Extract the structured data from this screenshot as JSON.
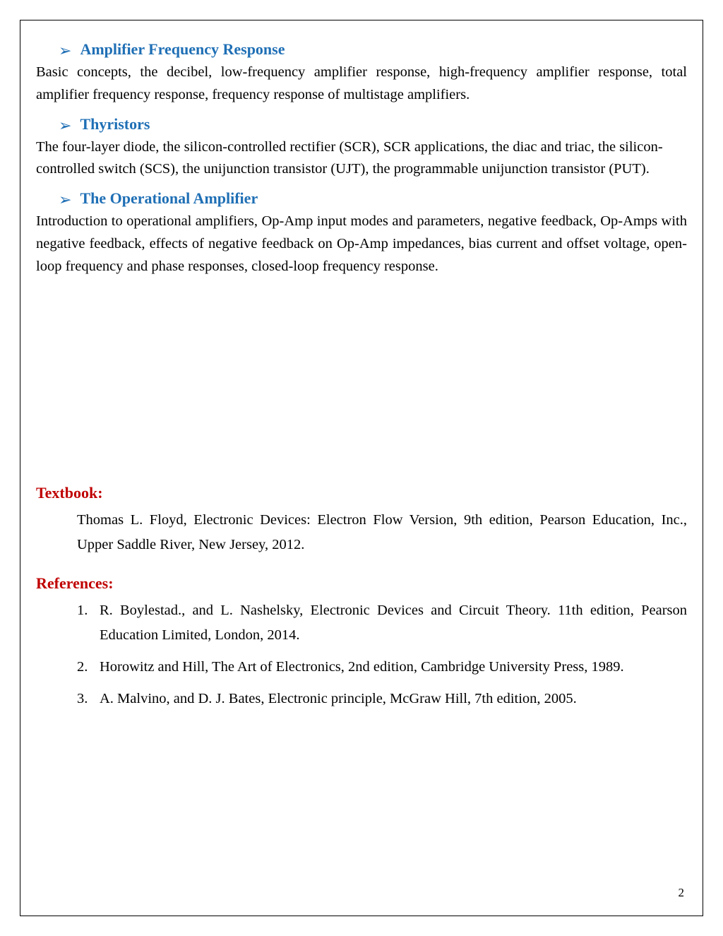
{
  "sections": [
    {
      "heading": "Amplifier Frequency Response",
      "body": "Basic concepts, the decibel, low-frequency amplifier response, high-frequency amplifier response, total amplifier frequency response, frequency response of multistage amplifiers.",
      "justify": true
    },
    {
      "heading": "Thyristors",
      "body": "The four-layer diode, the silicon-controlled rectifier (SCR), SCR applications, the diac and triac, the silicon-controlled switch (SCS), the unijunction transistor (UJT), the programmable unijunction transistor (PUT).",
      "justify": false
    },
    {
      "heading": "The Operational Amplifier",
      "body": "Introduction to operational amplifiers, Op-Amp input modes and parameters, negative feedback, Op-Amps with negative feedback, effects of negative feedback on Op-Amp impedances, bias current and offset voltage, open-loop frequency and phase responses, closed-loop frequency response.",
      "justify": true
    }
  ],
  "textbook": {
    "label": "Textbook:",
    "content": "Thomas L. Floyd, Electronic Devices: Electron Flow Version, 9th edition, Pearson Education, Inc., Upper Saddle River, New Jersey, 2012."
  },
  "references": {
    "label": "References:",
    "items": [
      "R. Boylestad., and L. Nashelsky, Electronic Devices and Circuit Theory. 11th edition, Pearson Education Limited, London, 2014.",
      "Horowitz and Hill, The Art of Electronics, 2nd edition, Cambridge University Press, 1989.",
      "A. Malvino, and D. J. Bates, Electronic principle, McGraw Hill, 7th edition, 2005."
    ]
  },
  "page_number": "2",
  "colors": {
    "heading_blue": "#1f6fb5",
    "label_red": "#c00000",
    "text_black": "#000000",
    "border_black": "#000000",
    "background": "#ffffff"
  }
}
